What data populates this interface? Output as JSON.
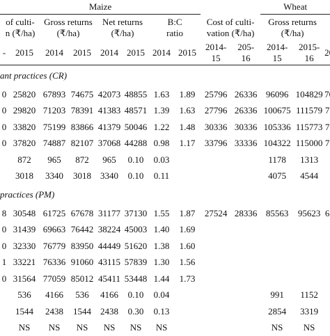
{
  "header": {
    "group_row": [
      "Maize",
      "Wheat"
    ],
    "column_row": [
      "of culti-\nn (₹/ha)",
      "Gross returns\n(₹/ha)",
      "Net returns\n(₹/ha)",
      "B:C\nratio",
      "Cost of culti-\nvation (₹/ha)",
      "Gross returns\n(₹/ha)"
    ],
    "year_row": [
      "-",
      "2015",
      "2014",
      "2015",
      "2014",
      "2015",
      "2014",
      "2015",
      "2014-\n15",
      "205-\n16",
      "2014-\n15",
      "2015-\n16",
      "20"
    ]
  },
  "sections": [
    {
      "label": "ant practices (CR)",
      "rows": [
        [
          "0",
          "25820",
          "67893",
          "74675",
          "42073",
          "48855",
          "1.63",
          "1.89",
          "25796",
          "26336",
          "96096",
          "104829",
          "70"
        ],
        [
          "0",
          "29820",
          "71203",
          "78391",
          "41383",
          "48571",
          "1.39",
          "1.63",
          "27796",
          "26336",
          "100675",
          "111579",
          "7"
        ],
        [
          "0",
          "33820",
          "75199",
          "83866",
          "41379",
          "50046",
          "1.22",
          "1.48",
          "30336",
          "30336",
          "105336",
          "115773",
          "7"
        ],
        [
          "0",
          "37820",
          "74887",
          "82107",
          "37068",
          "44288",
          "0.98",
          "1.17",
          "33796",
          "33336",
          "104322",
          "115000",
          "7"
        ],
        [
          null,
          "872",
          "965",
          "872",
          "965",
          "0.10",
          "0.03",
          null,
          null,
          null,
          "1178",
          "1313",
          null
        ],
        [
          null,
          "3018",
          "3340",
          "3018",
          "3340",
          "0.10",
          "0.11",
          null,
          null,
          null,
          "4075",
          "4544",
          null
        ]
      ]
    },
    {
      "label": "practices (PM)",
      "rows": [
        [
          "8",
          "30548",
          "61725",
          "67678",
          "31177",
          "37130",
          "1.55",
          "1.87",
          "27524",
          "28336",
          "85563",
          "95623",
          "6"
        ],
        [
          "0",
          "31439",
          "69663",
          "76442",
          "38224",
          "45003",
          "1.40",
          "1.69",
          null,
          null,
          null,
          null,
          null
        ],
        [
          "0",
          "32330",
          "76779",
          "83950",
          "44449",
          "51620",
          "1.38",
          "1.60",
          null,
          null,
          null,
          null,
          null
        ],
        [
          "1",
          "33221",
          "76336",
          "91060",
          "43115",
          "57839",
          "1.30",
          "1.56",
          null,
          null,
          null,
          null,
          null
        ],
        [
          "0",
          "31564",
          "77059",
          "85012",
          "45411",
          "53448",
          "1.44",
          "1.73",
          null,
          null,
          null,
          null,
          null
        ],
        [
          null,
          "536",
          "4166",
          "536",
          "4166",
          "0.10",
          "0.04",
          null,
          null,
          null,
          "991",
          "1152",
          null
        ],
        [
          null,
          "1544",
          "2438",
          "1544",
          "2438",
          "0.30",
          "0.13",
          null,
          null,
          null,
          "2854",
          "3319",
          null
        ],
        [
          null,
          "NS",
          "NS",
          "NS",
          "NS",
          "NS",
          "NS",
          null,
          null,
          null,
          "NS",
          "NS",
          null
        ]
      ]
    }
  ]
}
